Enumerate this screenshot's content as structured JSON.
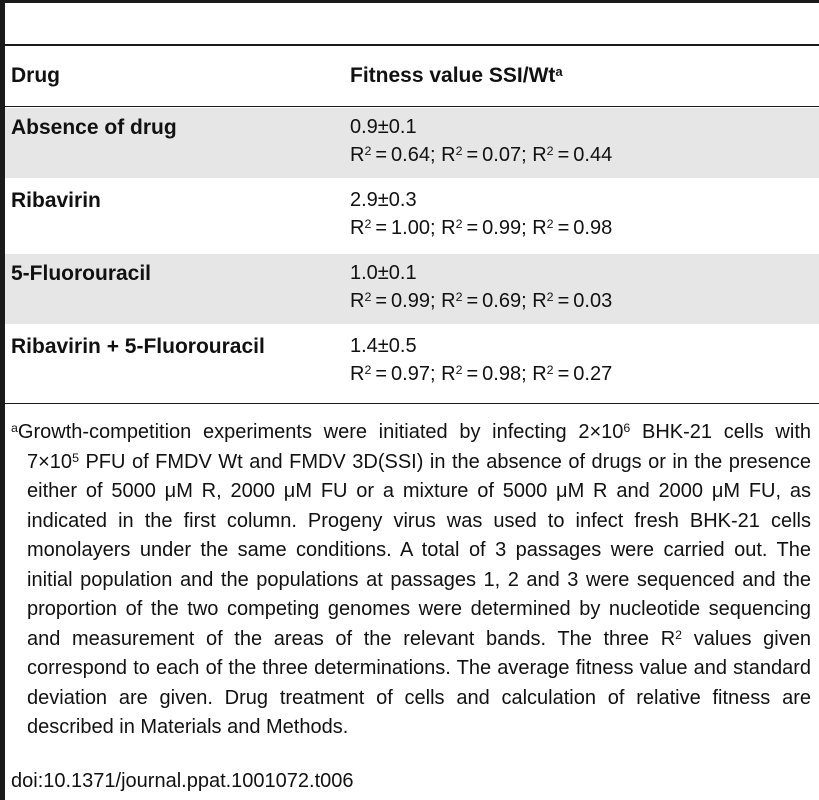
{
  "table": {
    "header": {
      "drug": "Drug",
      "fitness": "Fitness value SSI/Wt",
      "fitness_sup": "a"
    },
    "rows": [
      {
        "drug": "Absence of drug",
        "value": "0.9±0.1",
        "r2": [
          "0.64",
          "0.07",
          "0.44"
        ],
        "shaded": true
      },
      {
        "drug": "Ribavirin",
        "value": "2.9±0.3",
        "r2": [
          "1.00",
          "0.99",
          "0.98"
        ],
        "shaded": false
      },
      {
        "drug": "5-Fluorouracil",
        "value": "1.0±0.1",
        "r2": [
          "0.99",
          "0.69",
          "0.03"
        ],
        "shaded": true
      },
      {
        "drug": "Ribavirin + 5-Fluorouracil",
        "value": "1.4±0.5",
        "r2": [
          "0.97",
          "0.98",
          "0.27"
        ],
        "shaded": false
      }
    ]
  },
  "footnote": {
    "marker": "a",
    "text_part1": "Growth-competition experiments were initiated by infecting 2×10",
    "exp1": "6",
    "text_part2": " BHK-21 cells with 7×10",
    "exp2": "5",
    "text_part3": " PFU of FMDV Wt and FMDV 3D(SSI) in the absence of drugs or in the presence either of 5000 μM R, 2000 μM FU or a mixture of 5000 μM R and 2000 μM FU, as indicated in the first column. Progeny virus was used to infect fresh BHK-21 cells monolayers under the same conditions. A total of 3 passages were carried out. The initial population and the populations at passages 1, 2 and 3 were sequenced and the proportion of the two competing genomes were determined by nucleotide sequencing and measurement of the areas of the relevant bands. The three R",
    "exp3": "2",
    "text_part4": " values given correspond to each of the three determinations. The average fitness value and standard deviation are given. Drug treatment of cells and calculation of relative fitness are described in Materials and Methods."
  },
  "doi": "doi:10.1371/journal.ppat.1001072.t006"
}
